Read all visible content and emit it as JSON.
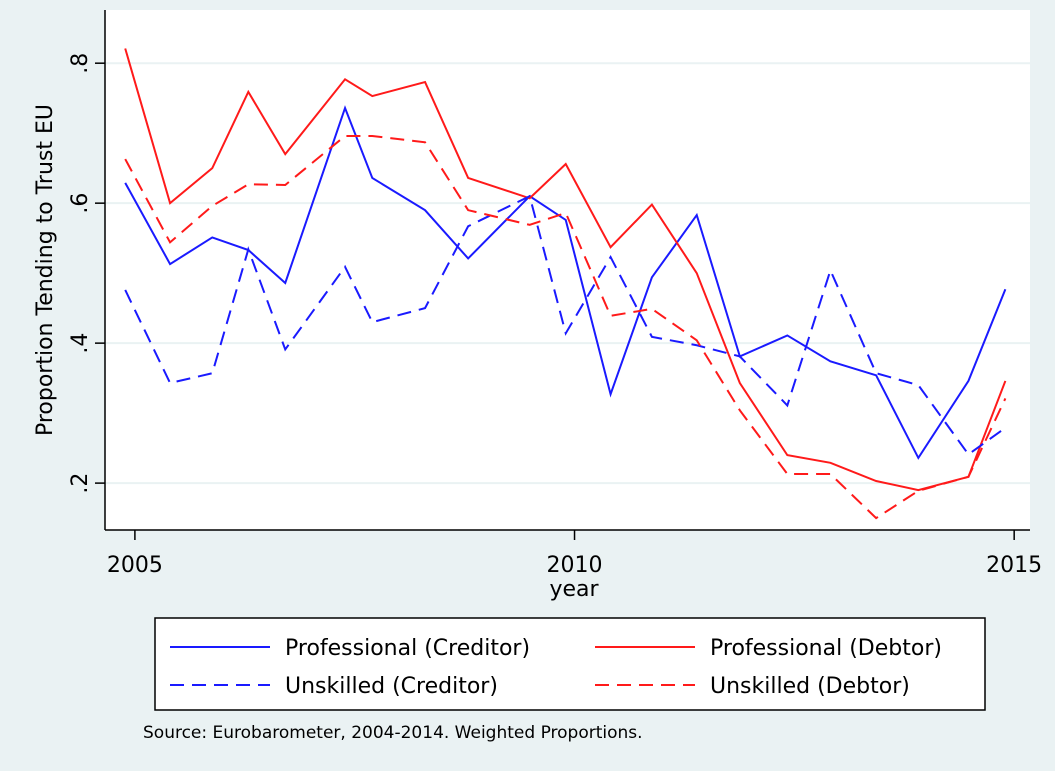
{
  "chart_data": {
    "type": "line",
    "x_label": "year",
    "y_label": "Proportion Tending to Trust EU",
    "note": "Source: Eurobarometer, 2004-2014. Weighted Proportions.",
    "x": [
      2004.89,
      2005.4,
      2005.88,
      2006.29,
      2006.71,
      2007.39,
      2007.7,
      2008.3,
      2008.79,
      2009.49,
      2009.9,
      2010.41,
      2010.88,
      2011.39,
      2011.88,
      2012.42,
      2012.91,
      2013.43,
      2013.91,
      2014.48,
      2014.9
    ],
    "series": [
      {
        "name": "Professional (Creditor)",
        "color": "#1a1aff",
        "dash": false,
        "values": [
          0.629,
          0.513,
          0.551,
          0.533,
          0.486,
          0.736,
          0.636,
          0.59,
          0.521,
          0.61,
          0.576,
          0.327,
          0.494,
          0.583,
          0.381,
          0.411,
          0.374,
          0.354,
          0.236,
          0.346,
          0.477
        ]
      },
      {
        "name": "Professional (Debtor)",
        "color": "#ff1a1a",
        "dash": false,
        "values": [
          0.821,
          0.6,
          0.65,
          0.759,
          0.67,
          0.777,
          0.753,
          0.773,
          0.636,
          0.607,
          0.656,
          0.537,
          0.598,
          0.5,
          0.343,
          0.24,
          0.229,
          0.203,
          0.19,
          0.209,
          0.346
        ]
      },
      {
        "name": "Unskilled (Creditor)",
        "color": "#1a1aff",
        "dash": true,
        "values": [
          0.476,
          0.343,
          0.357,
          0.534,
          0.391,
          0.509,
          0.43,
          0.45,
          0.567,
          0.61,
          0.414,
          0.523,
          0.409,
          0.397,
          0.381,
          0.311,
          0.504,
          0.357,
          0.34,
          0.241,
          0.279
        ]
      },
      {
        "name": "Unskilled (Debtor)",
        "color": "#ff1a1a",
        "dash": true,
        "values": [
          0.663,
          0.544,
          0.596,
          0.627,
          0.626,
          0.696,
          0.696,
          0.687,
          0.59,
          0.569,
          0.586,
          0.439,
          0.449,
          0.404,
          0.304,
          0.213,
          0.213,
          0.15,
          0.189,
          0.209,
          0.321
        ]
      }
    ],
    "xlim": [
      2004.66,
      2015.18
    ],
    "xticks": [
      2005,
      2010,
      2015
    ],
    "ylim": [
      0.133,
      0.876
    ],
    "yticks": [
      {
        "value": 0.2,
        "label": ".2"
      },
      {
        "value": 0.4,
        "label": ".4"
      },
      {
        "value": 0.6,
        "label": ".6"
      },
      {
        "value": 0.8,
        "label": ".8"
      }
    ],
    "grid": true,
    "legend_position": "bottom"
  }
}
